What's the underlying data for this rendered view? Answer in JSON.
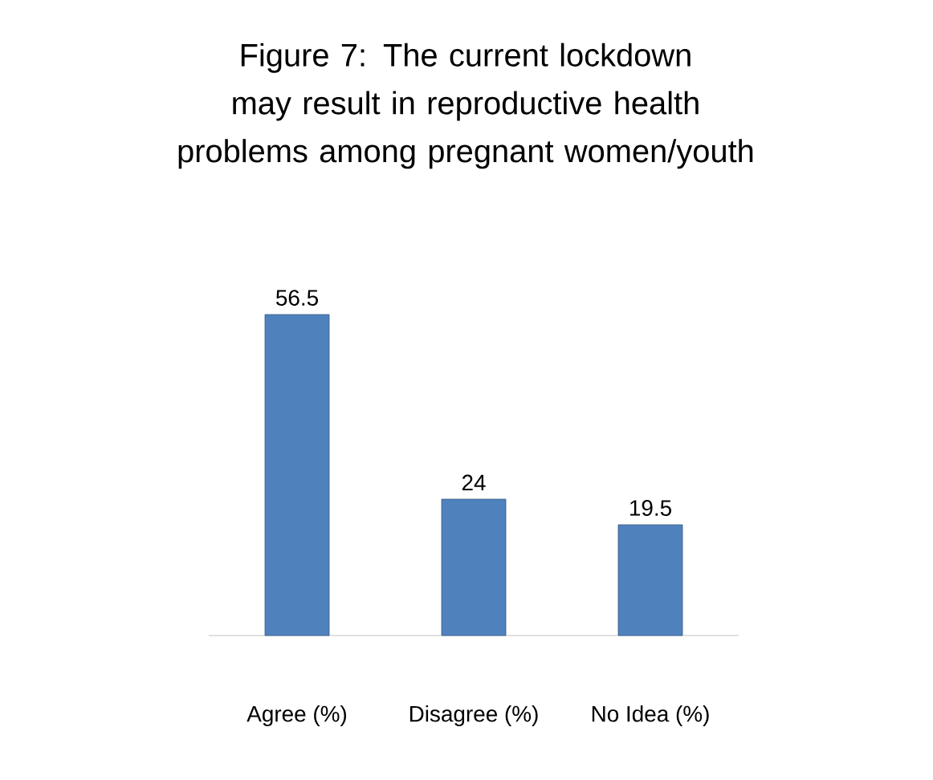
{
  "chart_data": {
    "type": "bar",
    "title": "Figure 7: The current lockdown may result in reproductive health problems among pregnant women/youth",
    "categories": [
      "Agree  (%)",
      "Disagree (%)",
      "No Idea (%)"
    ],
    "values": [
      56.5,
      24,
      19.5
    ],
    "color": "#4f81bd",
    "data_labels": true
  }
}
